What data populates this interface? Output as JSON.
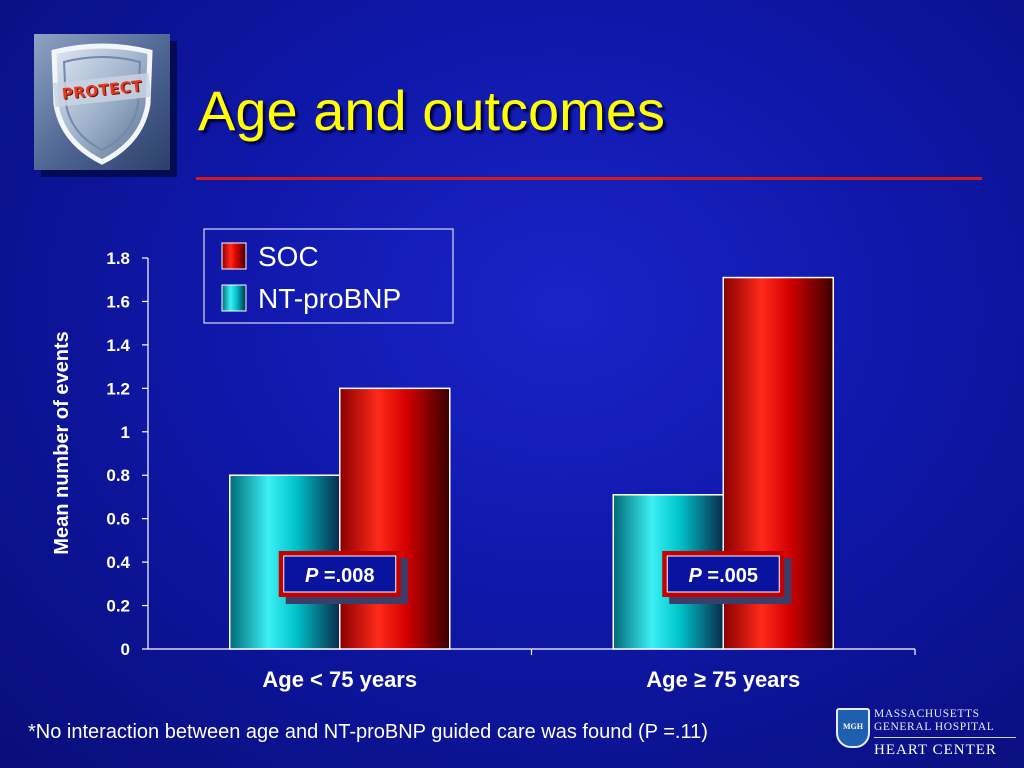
{
  "slide": {
    "title": "Age and outcomes",
    "logo_text": "PROTECT",
    "footnote": "*No interaction between age and NT-proBNP guided care was found (P =.11)",
    "institution": {
      "shield_text": "MGH",
      "line1": "MASSACHUSETTS",
      "line2": "GENERAL HOSPITAL",
      "line3": "HEART CENTER"
    },
    "colors": {
      "background": "#0f17a8",
      "title": "#ffff00",
      "rule": "#d11a1a",
      "soc": "#d40000",
      "ntprobnp": "#00c4cc"
    }
  },
  "chart_data": {
    "type": "bar",
    "categories": [
      "Age < 75 years",
      "Age ≥ 75 years"
    ],
    "series": [
      {
        "name": "NT-proBNP",
        "values": [
          0.8,
          0.71
        ]
      },
      {
        "name": "SOC",
        "values": [
          1.2,
          1.71
        ]
      }
    ],
    "ylabel": "Mean number of events",
    "xlabel": "",
    "ylim": [
      0,
      1.8
    ],
    "yticks": [
      "0",
      "0.2",
      "0.4",
      "0.6",
      "0.8",
      "1",
      "1.2",
      "1.4",
      "1.6",
      "1.8"
    ],
    "legend": {
      "placement": "top-center",
      "entries": [
        "SOC",
        "NT-proBNP"
      ]
    },
    "annotations": [
      {
        "category": "Age < 75 years",
        "prefix": "P",
        "text": " =.008"
      },
      {
        "category": "Age ≥ 75 years",
        "prefix": "P",
        "text": " =.005"
      }
    ],
    "grid": false
  }
}
